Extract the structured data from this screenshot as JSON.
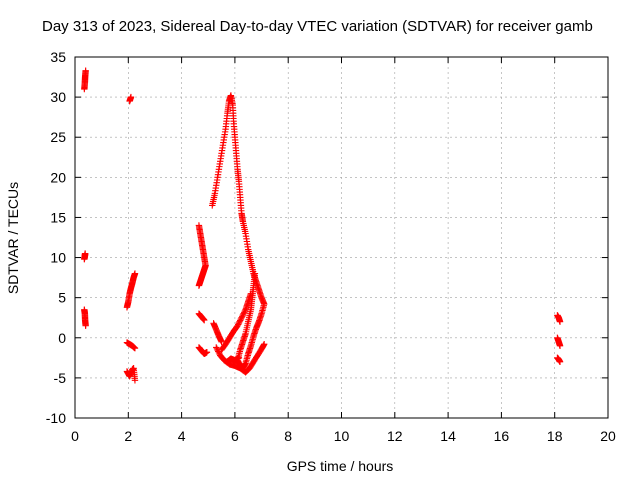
{
  "chart_data": {
    "type": "scatter",
    "title": "Day 313 of 2023, Sidereal Day-to-day VTEC variation (SDTVAR) for receiver gamb",
    "xlabel": "GPS time / hours",
    "ylabel": "SDTVAR / TECUs",
    "xlim": [
      0,
      20
    ],
    "ylim": [
      -10,
      35
    ],
    "xticks": [
      0,
      2,
      4,
      6,
      8,
      10,
      12,
      14,
      16,
      18,
      20
    ],
    "yticks": [
      -10,
      -5,
      0,
      5,
      10,
      15,
      20,
      25,
      30,
      35
    ],
    "xtick_labels": [
      "0",
      "2",
      "4",
      "6",
      "8",
      "10",
      "12",
      "14",
      "16",
      "18",
      "20"
    ],
    "ytick_labels": [
      "-10",
      "-5",
      "0",
      "5",
      "10",
      "15",
      "20",
      "25",
      "30",
      "35"
    ],
    "grid": true,
    "marker": "+",
    "series_color": "#ff0000",
    "series": [
      {
        "name": "SDTVAR",
        "segments": [
          [
            [
              0.35,
              31.0
            ],
            [
              0.37,
              31.8
            ],
            [
              0.38,
              32.5
            ],
            [
              0.4,
              33.3
            ]
          ],
          [
            [
              0.35,
              9.8
            ],
            [
              0.37,
              10.2
            ],
            [
              0.38,
              10.5
            ]
          ],
          [
            [
              0.35,
              3.5
            ],
            [
              0.37,
              3.0
            ],
            [
              0.38,
              2.2
            ],
            [
              0.4,
              1.5
            ]
          ],
          [
            [
              2.05,
              29.5
            ],
            [
              2.1,
              30.0
            ]
          ],
          [
            [
              1.95,
              3.8
            ],
            [
              2.0,
              4.5
            ],
            [
              2.05,
              5.5
            ],
            [
              2.1,
              6.2
            ],
            [
              2.15,
              6.8
            ],
            [
              2.2,
              7.5
            ],
            [
              2.25,
              8.0
            ]
          ],
          [
            [
              1.95,
              -0.6
            ],
            [
              2.05,
              -0.8
            ],
            [
              2.15,
              -1.0
            ],
            [
              2.25,
              -1.3
            ]
          ],
          [
            [
              1.95,
              -4.2
            ],
            [
              2.05,
              -4.8
            ],
            [
              2.15,
              -4.0
            ],
            [
              2.2,
              -3.8
            ],
            [
              2.25,
              -5.3
            ]
          ],
          [
            [
              4.65,
              14.0
            ],
            [
              4.7,
              13.0
            ],
            [
              4.75,
              12.0
            ],
            [
              4.8,
              11.0
            ],
            [
              4.85,
              10.0
            ],
            [
              4.9,
              9.0
            ],
            [
              4.85,
              8.5
            ],
            [
              4.8,
              8.0
            ],
            [
              4.75,
              7.5
            ],
            [
              4.7,
              7.0
            ],
            [
              4.65,
              6.5
            ]
          ],
          [
            [
              4.65,
              3.0
            ],
            [
              4.75,
              2.6
            ],
            [
              4.85,
              2.2
            ]
          ],
          [
            [
              4.65,
              -1.2
            ],
            [
              4.75,
              -1.6
            ],
            [
              4.85,
              -2.0
            ],
            [
              4.95,
              -1.8
            ]
          ],
          [
            [
              5.2,
              1.8
            ],
            [
              5.3,
              1.0
            ],
            [
              5.4,
              0.2
            ],
            [
              5.5,
              -0.5
            ]
          ],
          [
            [
              5.15,
              16.5
            ],
            [
              5.25,
              18.0
            ],
            [
              5.35,
              20.0
            ],
            [
              5.45,
              22.0
            ],
            [
              5.55,
              24.0
            ],
            [
              5.65,
              26.0
            ],
            [
              5.72,
              28.0
            ],
            [
              5.78,
              29.5
            ],
            [
              5.85,
              30.2
            ],
            [
              5.92,
              29.0
            ],
            [
              5.95,
              27.0
            ],
            [
              6.0,
              25.0
            ],
            [
              6.05,
              23.0
            ],
            [
              6.1,
              21.0
            ],
            [
              6.15,
              19.5
            ],
            [
              6.2,
              17.5
            ],
            [
              6.25,
              15.5
            ],
            [
              6.3,
              14.5
            ],
            [
              6.4,
              13.0
            ],
            [
              6.5,
              11.0
            ],
            [
              6.6,
              9.5
            ],
            [
              6.7,
              8.0
            ],
            [
              6.8,
              7.0
            ],
            [
              6.9,
              6.0
            ],
            [
              7.0,
              5.0
            ],
            [
              7.1,
              4.2
            ],
            [
              7.0,
              3.0
            ],
            [
              6.9,
              2.0
            ],
            [
              6.8,
              1.2
            ],
            [
              6.7,
              0.2
            ],
            [
              6.6,
              -1.0
            ],
            [
              6.5,
              -2.0
            ],
            [
              6.4,
              -3.2
            ],
            [
              6.3,
              -3.8
            ],
            [
              6.2,
              -3.5
            ],
            [
              6.1,
              -2.8
            ],
            [
              6.2,
              -1.5
            ],
            [
              6.3,
              -0.5
            ],
            [
              6.4,
              0.5
            ],
            [
              6.5,
              2.0
            ],
            [
              6.6,
              3.5
            ],
            [
              6.65,
              5.0
            ],
            [
              6.7,
              6.5
            ],
            [
              6.75,
              8.0
            ]
          ],
          [
            [
              5.3,
              -1.2
            ],
            [
              5.45,
              -2.2
            ],
            [
              5.6,
              -2.8
            ],
            [
              5.8,
              -3.3
            ],
            [
              6.0,
              -3.5
            ],
            [
              6.2,
              -3.8
            ],
            [
              6.4,
              -4.3
            ],
            [
              6.55,
              -3.8
            ],
            [
              6.7,
              -3.0
            ],
            [
              6.85,
              -2.2
            ],
            [
              7.0,
              -1.4
            ],
            [
              7.1,
              -0.8
            ]
          ],
          [
            [
              5.5,
              -1.5
            ],
            [
              5.65,
              -0.8
            ],
            [
              5.8,
              0.0
            ],
            [
              5.95,
              0.8
            ],
            [
              6.1,
              1.5
            ],
            [
              6.25,
              2.5
            ],
            [
              6.4,
              3.5
            ],
            [
              6.5,
              4.5
            ],
            [
              6.6,
              5.5
            ]
          ],
          [
            [
              5.7,
              -3.0
            ],
            [
              5.85,
              -2.6
            ],
            [
              6.0,
              -2.8
            ],
            [
              6.15,
              -2.5
            ]
          ],
          [
            [
              18.1,
              2.8
            ],
            [
              18.15,
              2.5
            ],
            [
              18.2,
              2.0
            ]
          ],
          [
            [
              18.1,
              0.0
            ],
            [
              18.15,
              -0.5
            ],
            [
              18.2,
              -1.0
            ]
          ],
          [
            [
              18.1,
              -2.5
            ],
            [
              18.15,
              -2.7
            ],
            [
              18.2,
              -3.0
            ]
          ]
        ]
      }
    ]
  }
}
